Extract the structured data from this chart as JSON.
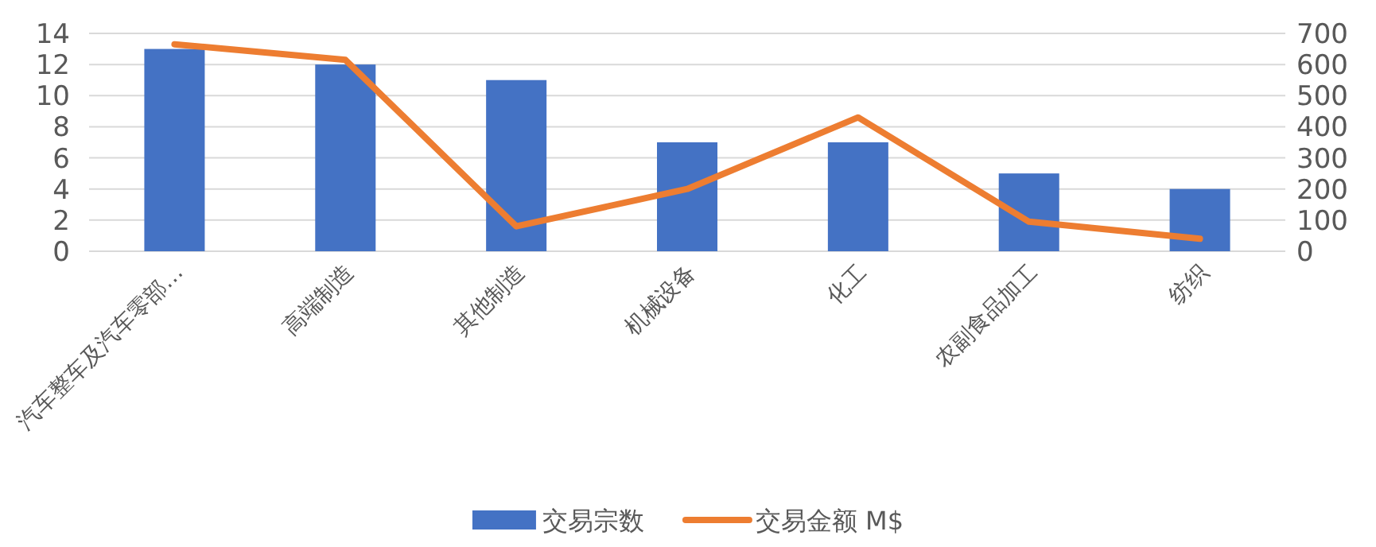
{
  "chart_data": {
    "type": "bar",
    "categories": [
      "汽车整车及汽车零部…",
      "高端制造",
      "其他制造",
      "机械设备",
      "化工",
      "农副食品加工",
      "纺织"
    ],
    "series": [
      {
        "name": "交易宗数",
        "color": "#4472c4",
        "values": [
          13,
          12,
          11,
          7,
          7,
          5,
          4
        ]
      },
      {
        "name": "交易金额 M$",
        "type": "line",
        "axis": "y2",
        "color": "#ed7d31",
        "values": [
          665,
          615,
          80,
          200,
          430,
          95,
          40
        ]
      }
    ],
    "ylim": [
      0,
      14
    ],
    "yticks": [
      0,
      2,
      4,
      6,
      8,
      10,
      12,
      14
    ],
    "y2lim": [
      0,
      700
    ],
    "y2ticks": [
      0,
      100,
      200,
      300,
      400,
      500,
      600,
      700
    ],
    "grid": "y",
    "legend": "bottom",
    "marker": "none",
    "line_style": "solid"
  }
}
